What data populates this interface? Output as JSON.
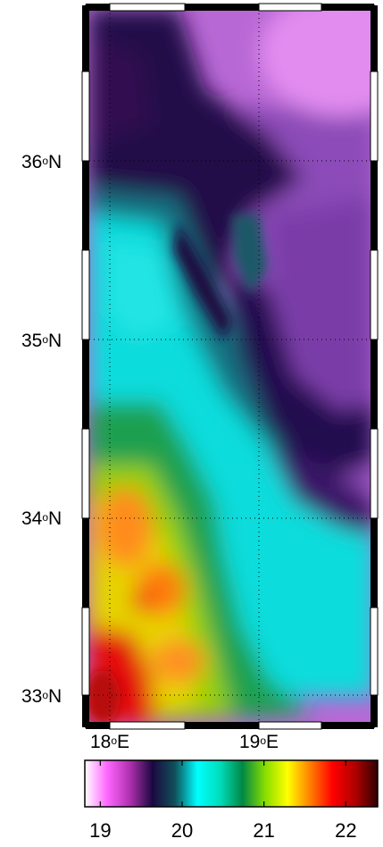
{
  "map": {
    "lat_labels": [
      {
        "deg": "36",
        "hemi": "N"
      },
      {
        "deg": "35",
        "hemi": "N"
      },
      {
        "deg": "34",
        "hemi": "N"
      },
      {
        "deg": "33",
        "hemi": "N"
      }
    ],
    "lon_labels": [
      {
        "deg": "18",
        "hemi": "E"
      },
      {
        "deg": "19",
        "hemi": "E"
      }
    ],
    "degree_symbol": "o",
    "lat_range": [
      32.85,
      36.85
    ],
    "lon_range": [
      17.85,
      19.75
    ],
    "grid": "dotted"
  },
  "colorbar": {
    "ticks": [
      "19",
      "20",
      "21",
      "22"
    ],
    "range": [
      18.8,
      22.4
    ],
    "colors": [
      "#ffffff",
      "#ff66ff",
      "#b030b0",
      "#1c0840",
      "#10505a",
      "#00ffff",
      "#00ddbb",
      "#008844",
      "#88dd00",
      "#ffff00",
      "#ff8000",
      "#ff0000",
      "#b00000",
      "#300000"
    ]
  },
  "field_colors": {
    "magenta": "#c070d8",
    "violet": "#9a50c0",
    "purple": "#7040a0",
    "dark": "#200a40",
    "teal": "#145a6c",
    "cyan": "#00d0d0",
    "green": "#128a40",
    "yellow": "#d8d000",
    "orange": "#ff9020",
    "red": "#ee1010"
  }
}
